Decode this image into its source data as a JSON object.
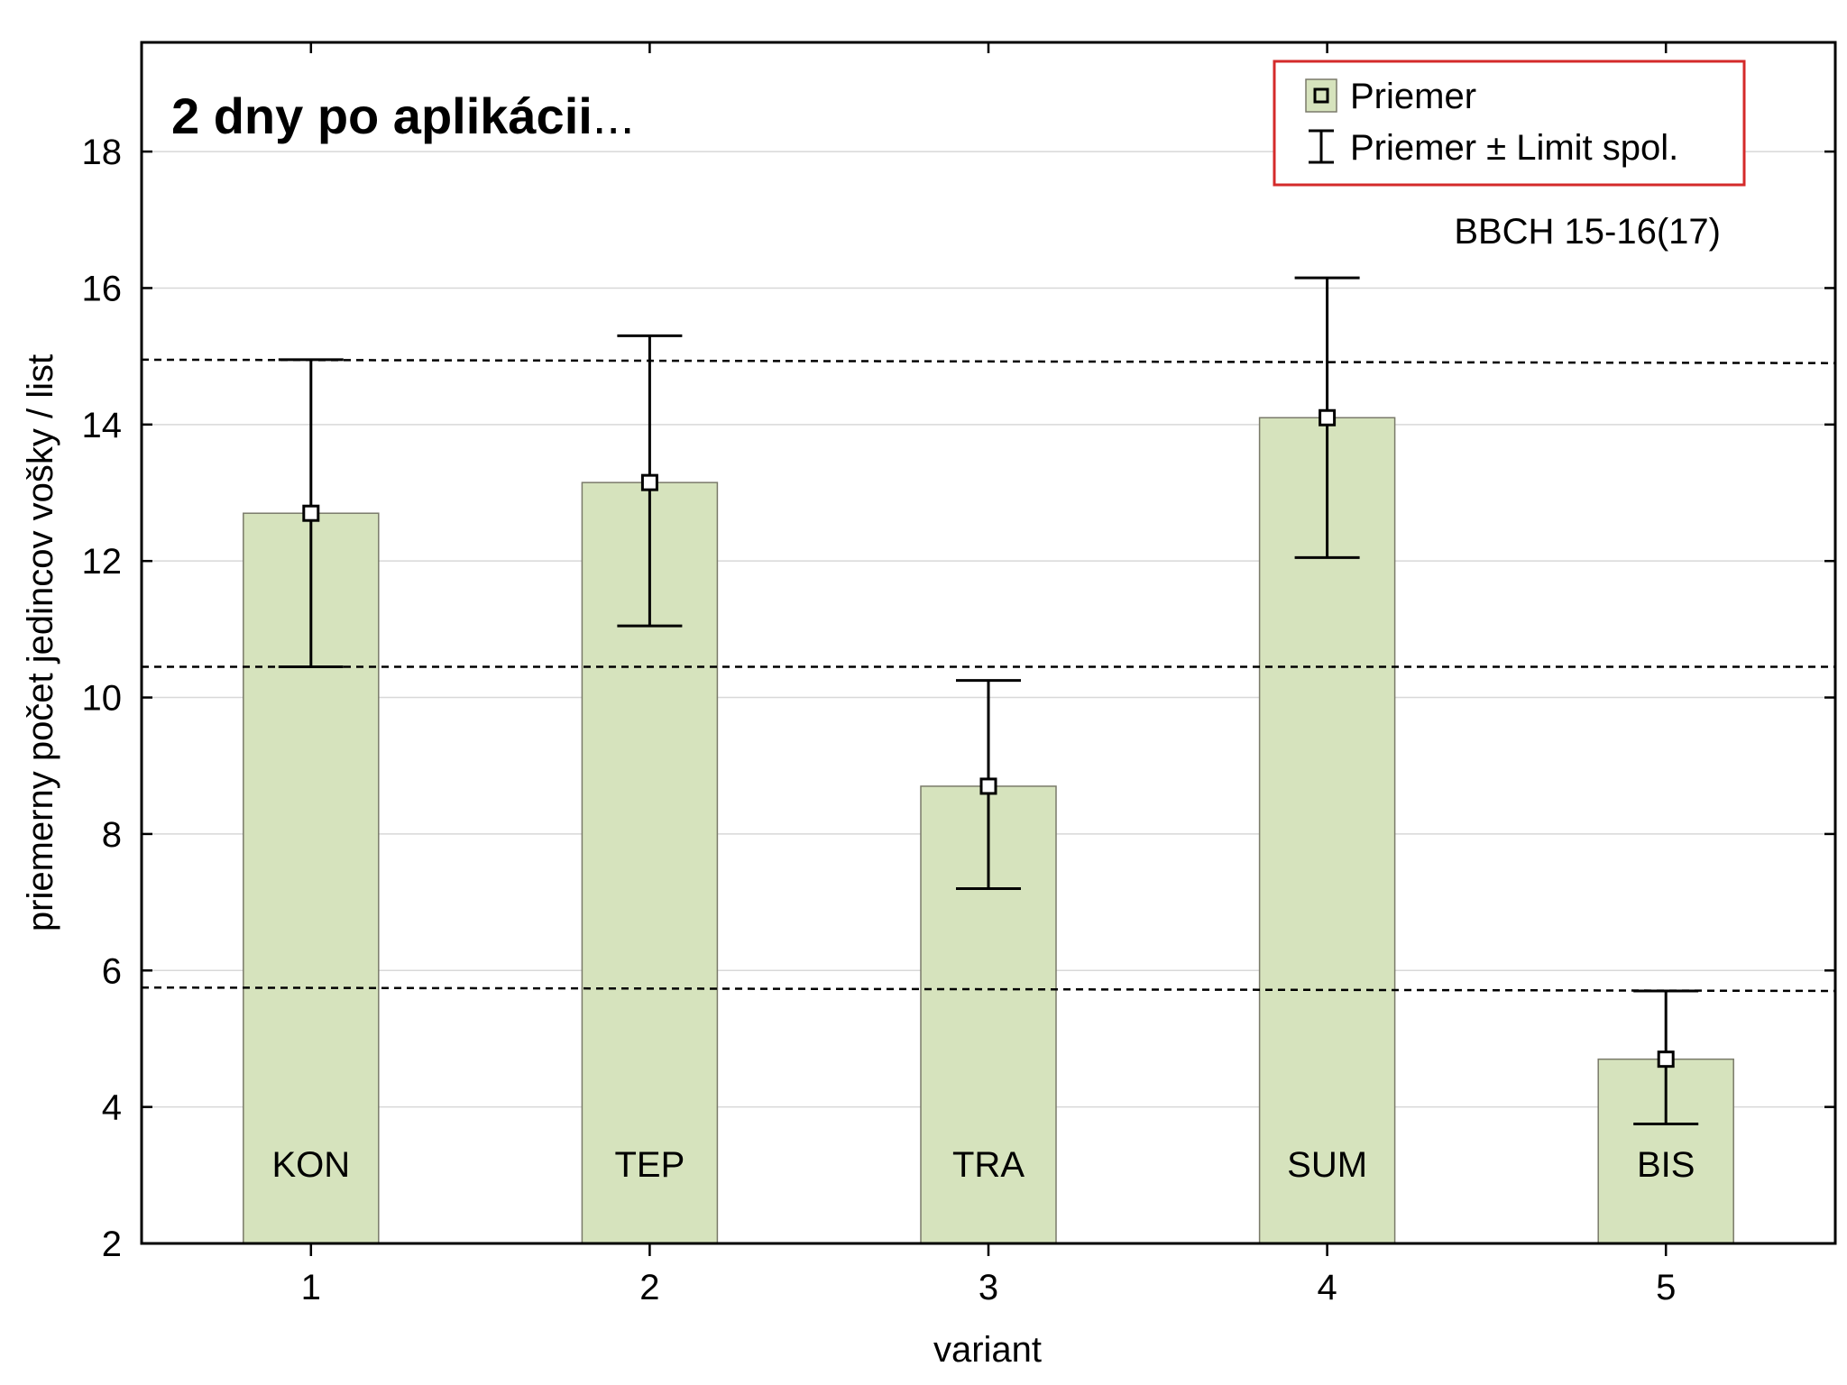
{
  "chart_data": {
    "type": "bar",
    "title": "2 dny po aplikácii",
    "title_suffix": "...",
    "annotation": "BBCH 15-16(17)",
    "xlabel": "variant",
    "ylabel": "priemerny počet jedincov vošky / list",
    "categories": [
      "1",
      "2",
      "3",
      "4",
      "5"
    ],
    "bar_labels": [
      "KON",
      "TEP",
      "TRA",
      "SUM",
      "BIS"
    ],
    "series": [
      {
        "name": "Priemer",
        "values": [
          12.7,
          13.15,
          8.7,
          14.1,
          4.7
        ],
        "error_low": [
          10.45,
          11.05,
          7.2,
          12.05,
          3.75
        ],
        "error_high": [
          14.95,
          15.3,
          10.25,
          16.15,
          5.7
        ]
      }
    ],
    "reference_lines": [
      {
        "from": 14.95,
        "to": 14.9
      },
      {
        "from": 10.45,
        "to": 10.45
      },
      {
        "from": 5.75,
        "to": 5.7
      }
    ],
    "ylim": [
      2,
      19.6
    ],
    "yticks": [
      2,
      4,
      6,
      8,
      10,
      12,
      14,
      16,
      18
    ],
    "grid": true,
    "legend": {
      "position": "top-right",
      "entries": [
        "Priemer",
        "Priemer ± Limit spol."
      ],
      "border_color": "#d42a2a"
    },
    "colors": {
      "bar_fill": "#d6e3bd",
      "bar_stroke": "#7a7a6a",
      "grid": "#d8d8d8"
    }
  }
}
